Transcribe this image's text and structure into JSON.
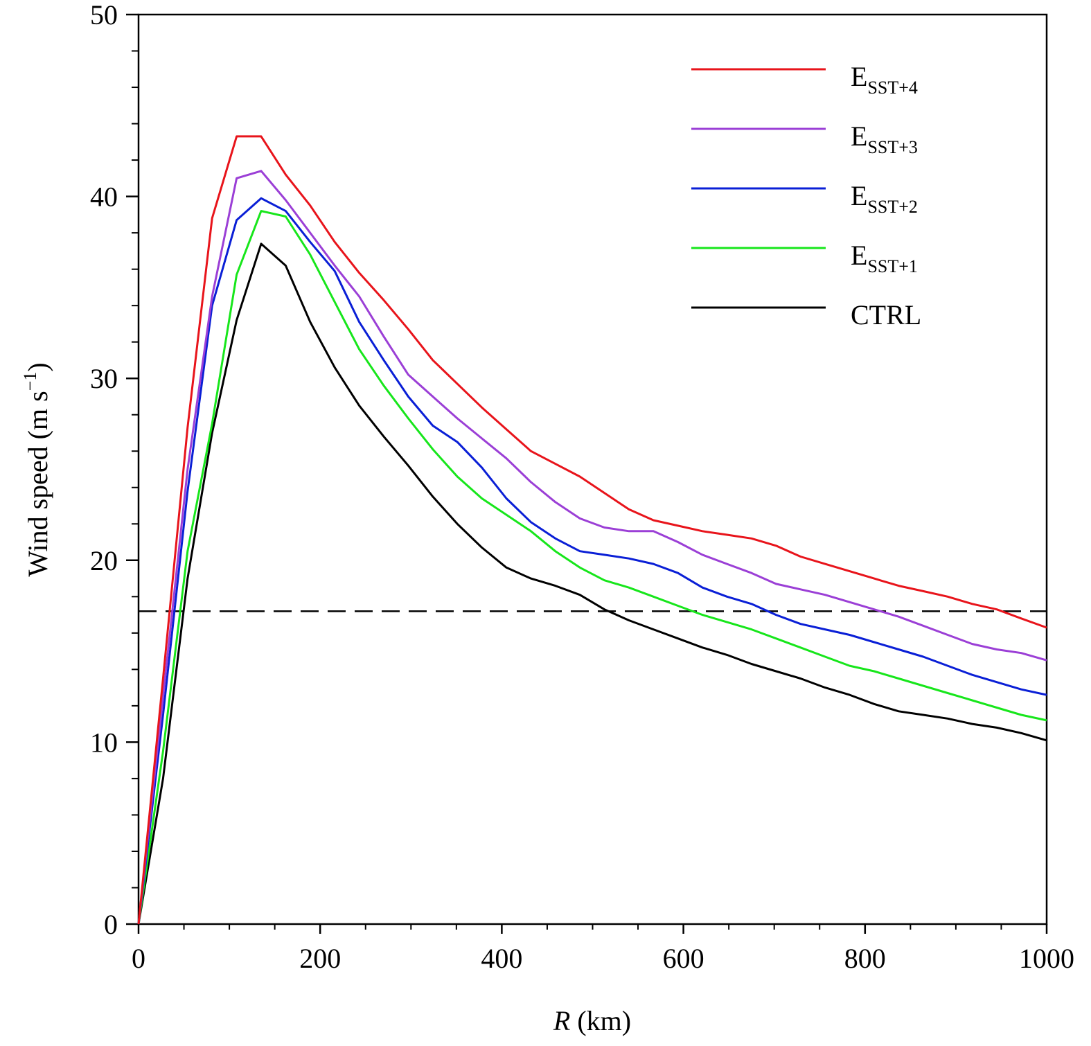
{
  "chart_data": {
    "type": "line",
    "title": "",
    "xlabel": {
      "italic": "R",
      "rest": " (km)"
    },
    "ylabel": {
      "text": "Wind speed (m s",
      "sup": "−1",
      "close": ")"
    },
    "xlim": [
      0,
      1000
    ],
    "ylim": [
      0,
      50
    ],
    "xticks": [
      0,
      200,
      400,
      600,
      800,
      1000
    ],
    "yticks": [
      0,
      10,
      20,
      30,
      40,
      50
    ],
    "xminor_step": 50,
    "yminor_step": 2,
    "grid": false,
    "legend_position": "top-right",
    "threshold": {
      "y": 17.2,
      "style": "dashed",
      "color": "#000000"
    },
    "x": [
      0,
      27,
      54,
      81,
      108,
      135,
      162,
      189,
      216,
      243,
      270,
      297,
      324,
      351,
      378,
      405,
      432,
      459,
      486,
      513,
      540,
      567,
      594,
      621,
      648,
      675,
      702,
      729,
      756,
      783,
      810,
      837,
      864,
      891,
      918,
      945,
      972,
      1000
    ],
    "series": [
      {
        "name": "E",
        "subscript": "SST+4",
        "color": "#e8141b",
        "values": [
          0,
          13.5,
          27.3,
          38.8,
          43.3,
          43.3,
          41.2,
          39.5,
          37.5,
          35.8,
          34.3,
          32.7,
          31.0,
          29.7,
          28.4,
          27.2,
          26.0,
          25.3,
          24.6,
          23.7,
          22.8,
          22.2,
          21.9,
          21.6,
          21.4,
          21.2,
          20.8,
          20.2,
          19.8,
          19.4,
          19.0,
          18.6,
          18.3,
          18.0,
          17.6,
          17.3,
          16.8,
          16.3
        ]
      },
      {
        "name": "E",
        "subscript": "SST+3",
        "color": "#9b3fd6",
        "values": [
          0,
          12.5,
          25.0,
          34.5,
          41.0,
          41.4,
          39.8,
          38.0,
          36.2,
          34.5,
          32.3,
          30.2,
          29.0,
          27.8,
          26.7,
          25.6,
          24.3,
          23.2,
          22.3,
          21.8,
          21.6,
          21.6,
          21.0,
          20.3,
          19.8,
          19.3,
          18.7,
          18.4,
          18.1,
          17.7,
          17.3,
          16.9,
          16.4,
          15.9,
          15.4,
          15.1,
          14.9,
          14.5
        ]
      },
      {
        "name": "E",
        "subscript": "SST+2",
        "color": "#0a1fd6",
        "values": [
          0,
          11.5,
          23.8,
          34.0,
          38.7,
          39.9,
          39.2,
          37.5,
          35.9,
          33.1,
          31.0,
          29.0,
          27.4,
          26.5,
          25.1,
          23.4,
          22.1,
          21.2,
          20.5,
          20.3,
          20.1,
          19.8,
          19.3,
          18.5,
          18.0,
          17.6,
          17.0,
          16.5,
          16.2,
          15.9,
          15.5,
          15.1,
          14.7,
          14.2,
          13.7,
          13.3,
          12.9,
          12.6
        ]
      },
      {
        "name": "E",
        "subscript": "SST+1",
        "color": "#17e61b",
        "values": [
          0,
          9.5,
          20.5,
          27.5,
          35.7,
          39.2,
          38.9,
          36.8,
          34.2,
          31.6,
          29.6,
          27.8,
          26.1,
          24.6,
          23.4,
          22.5,
          21.6,
          20.5,
          19.6,
          18.9,
          18.5,
          18.0,
          17.5,
          17.0,
          16.6,
          16.2,
          15.7,
          15.2,
          14.7,
          14.2,
          13.9,
          13.5,
          13.1,
          12.7,
          12.3,
          11.9,
          11.5,
          11.2
        ]
      },
      {
        "name": "CTRL",
        "subscript": "",
        "color": "#000000",
        "values": [
          0,
          8.0,
          19.0,
          27.0,
          33.2,
          37.4,
          36.2,
          33.1,
          30.6,
          28.5,
          26.8,
          25.2,
          23.5,
          22.0,
          20.7,
          19.6,
          19.0,
          18.6,
          18.1,
          17.3,
          16.7,
          16.2,
          15.7,
          15.2,
          14.8,
          14.3,
          13.9,
          13.5,
          13.0,
          12.6,
          12.1,
          11.7,
          11.5,
          11.3,
          11.0,
          10.8,
          10.5,
          10.1
        ]
      }
    ]
  }
}
